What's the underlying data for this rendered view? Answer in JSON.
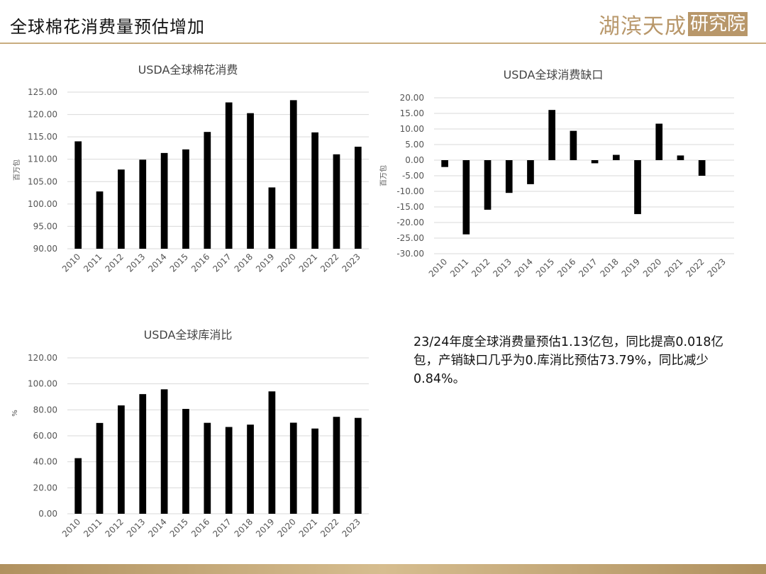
{
  "header": {
    "title": "全球棉花消费量预估增加",
    "logo_text": "湖滨天成",
    "logo_box_text": "研究院"
  },
  "colors": {
    "bar": "#000000",
    "grid": "#d9d9d9",
    "axis_text": "#555555",
    "accent": "#c8ad7f"
  },
  "note": "23/24年度全球消费量预估1.13亿包，同比提高0.018亿包，产销缺口几乎为0.库消比预估73.79%，同比减少0.84%。",
  "chart_data": [
    {
      "type": "bar",
      "title": "USDA全球棉花消费",
      "ylabel": "百万包",
      "categories": [
        "2010",
        "2011",
        "2012",
        "2013",
        "2014",
        "2015",
        "2016",
        "2017",
        "2018",
        "2019",
        "2020",
        "2021",
        "2022",
        "2023"
      ],
      "values": [
        114.0,
        102.8,
        107.7,
        109.9,
        111.4,
        112.2,
        116.1,
        122.7,
        120.3,
        103.7,
        123.2,
        116.0,
        111.1,
        112.8
      ],
      "ylim": [
        90,
        125
      ],
      "yticks": [
        "90.00",
        "95.00",
        "100.00",
        "105.00",
        "110.00",
        "115.00",
        "120.00",
        "125.00"
      ],
      "grid": true
    },
    {
      "type": "bar",
      "title": "USDA全球消费缺口",
      "ylabel": "百万包",
      "categories": [
        "2010",
        "2011",
        "2012",
        "2013",
        "2014",
        "2015",
        "2016",
        "2017",
        "2018",
        "2019",
        "2020",
        "2021",
        "2022",
        "2023"
      ],
      "values": [
        -2.2,
        -23.8,
        -15.9,
        -10.5,
        -7.7,
        16.1,
        9.4,
        -1.0,
        1.7,
        -17.3,
        11.7,
        1.5,
        -5.0,
        0
      ],
      "ylim": [
        -30,
        20
      ],
      "yticks": [
        "-30.00",
        "-25.00",
        "-20.00",
        "-15.00",
        "-10.00",
        "-5.00",
        "0.00",
        "5.00",
        "10.00",
        "15.00",
        "20.00"
      ],
      "grid": true
    },
    {
      "type": "bar",
      "title": "USDA全球库消比",
      "ylabel": "%",
      "categories": [
        "2010",
        "2011",
        "2012",
        "2013",
        "2014",
        "2015",
        "2016",
        "2017",
        "2018",
        "2019",
        "2020",
        "2021",
        "2022",
        "2023"
      ],
      "values": [
        42.8,
        69.9,
        83.4,
        92.1,
        95.8,
        80.7,
        70.0,
        66.8,
        68.6,
        94.2,
        70.1,
        65.6,
        74.6,
        73.8
      ],
      "ylim": [
        0,
        120
      ],
      "yticks": [
        "0.00",
        "20.00",
        "40.00",
        "60.00",
        "80.00",
        "100.00",
        "120.00"
      ],
      "grid": true
    }
  ]
}
